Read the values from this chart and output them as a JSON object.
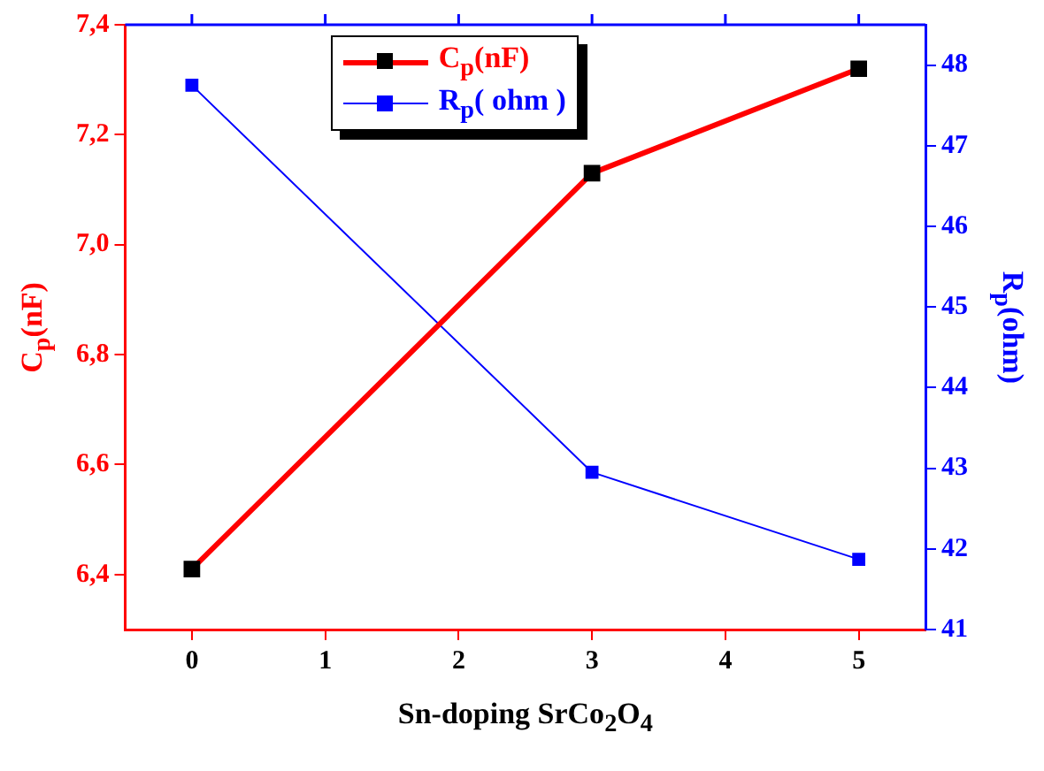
{
  "chart_data": {
    "type": "line",
    "xlabel": "Sn-doping SrCo$_{2}$O$_{4}$",
    "ylabel": "C$_{p}$(nF)",
    "y2label": "R$_{p}$(ohm)",
    "x": [
      0,
      3,
      5
    ],
    "series": [
      {
        "name": "C$_{p}$(nF)",
        "color": "#ff0000",
        "colors": [
          "#000000",
          "#000000",
          "#000000"
        ],
        "values": [
          6.41,
          7.13,
          7.32
        ]
      },
      {
        "name": "R$_{p}$( ohm )",
        "color": "#0000ff",
        "axis": "y2",
        "values": [
          47.75,
          42.95,
          41.87
        ]
      }
    ],
    "xlim": [
      -0.5,
      5.5
    ],
    "xticks": [
      0,
      1,
      2,
      3,
      4,
      5
    ],
    "ylim": [
      6.3,
      7.4
    ],
    "yticks": [
      {
        "value": 6.4,
        "label": "6,4"
      },
      {
        "value": 6.6,
        "label": "6,6"
      },
      {
        "value": 6.8,
        "label": "6,8"
      },
      {
        "value": 7.0,
        "label": "7,0"
      },
      {
        "value": 7.2,
        "label": "7,2"
      },
      {
        "value": 7.4,
        "label": "7,4"
      }
    ],
    "y2lim": [
      41,
      48.5
    ],
    "y2ticks": [
      41,
      42,
      43,
      44,
      45,
      46,
      47,
      48
    ],
    "legend": "top",
    "marker": "square"
  }
}
